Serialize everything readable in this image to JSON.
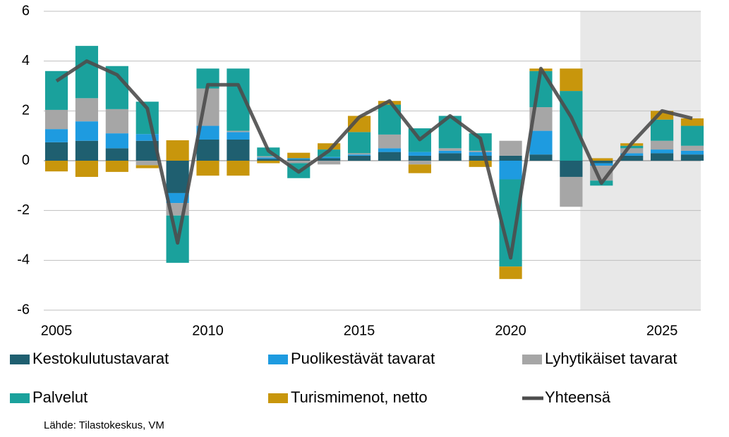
{
  "chart_data": {
    "type": "stacked-bar-line",
    "x": [
      2005,
      2006,
      2007,
      2008,
      2009,
      2010,
      2011,
      2012,
      2013,
      2014,
      2015,
      2016,
      2017,
      2018,
      2019,
      2020,
      2021,
      2022,
      2023,
      2024,
      2025,
      2026
    ],
    "series": [
      {
        "name": "Kestokulutustavarat",
        "color": "#1f5f70",
        "kind": "bar",
        "values": [
          0.74,
          0.8,
          0.5,
          0.8,
          -1.3,
          0.85,
          0.85,
          0.08,
          0.05,
          0.1,
          0.2,
          0.35,
          0.2,
          0.3,
          0.2,
          0.2,
          0.25,
          -0.65,
          -0.1,
          0.2,
          0.3,
          0.25
        ]
      },
      {
        "name": "Puolikestävät tavarat",
        "color": "#1e9be0",
        "kind": "bar",
        "values": [
          0.53,
          0.78,
          0.6,
          0.27,
          -0.4,
          0.55,
          0.3,
          0.05,
          0.05,
          0.05,
          0.05,
          0.15,
          0.15,
          0.1,
          0.15,
          -0.75,
          0.95,
          0,
          -0.1,
          0.1,
          0.15,
          0.15
        ]
      },
      {
        "name": "Lyhytikäiset tavarat",
        "color": "#a6a6a6",
        "kind": "bar",
        "values": [
          0.77,
          0.93,
          0.97,
          -0.18,
          -0.5,
          1.5,
          0.05,
          0.05,
          -0.1,
          -0.15,
          0.05,
          0.55,
          -0.15,
          0.1,
          0.05,
          0.6,
          0.95,
          -1.2,
          -0.6,
          0.2,
          0.35,
          0.2
        ]
      },
      {
        "name": "Palvelut",
        "color": "#1aa19c",
        "kind": "bar",
        "values": [
          1.56,
          2.1,
          1.73,
          1.3,
          -1.9,
          0.8,
          2.5,
          0.35,
          -0.6,
          0.3,
          0.85,
          1.2,
          0.95,
          1.3,
          0.7,
          -3.5,
          1.45,
          2.8,
          -0.2,
          0.1,
          0.85,
          0.8
        ]
      },
      {
        "name": "Turismimenot, netto",
        "color": "#c8960c",
        "kind": "bar",
        "values": [
          -0.43,
          -0.65,
          -0.45,
          -0.12,
          0.82,
          -0.6,
          -0.6,
          -0.1,
          0.22,
          0.25,
          0.65,
          0.15,
          -0.35,
          0,
          -0.25,
          -0.5,
          0.1,
          0.9,
          0.1,
          0.1,
          0.35,
          0.3
        ]
      },
      {
        "name": "Yhteensä",
        "color": "#4d4d4d",
        "kind": "line",
        "values": [
          3.2,
          4.0,
          3.45,
          2.1,
          -3.3,
          3.05,
          3.05,
          0.4,
          -0.45,
          0.4,
          1.75,
          2.4,
          0.85,
          1.8,
          0.9,
          -3.9,
          3.7,
          1.75,
          -0.9,
          0.7,
          2.0,
          1.7
        ]
      }
    ],
    "xlim": [
      2004.58,
      2026.28
    ],
    "xticks": [
      2005,
      2010,
      2015,
      2020,
      2025
    ],
    "ylim": [
      -6,
      6
    ],
    "yticks": [
      -6,
      -4,
      -2,
      0,
      2,
      4,
      6
    ],
    "grid": true,
    "shaded_region": [
      2022.3,
      2026.28
    ],
    "source": "Lähde: Tilastokeskus, VM"
  }
}
